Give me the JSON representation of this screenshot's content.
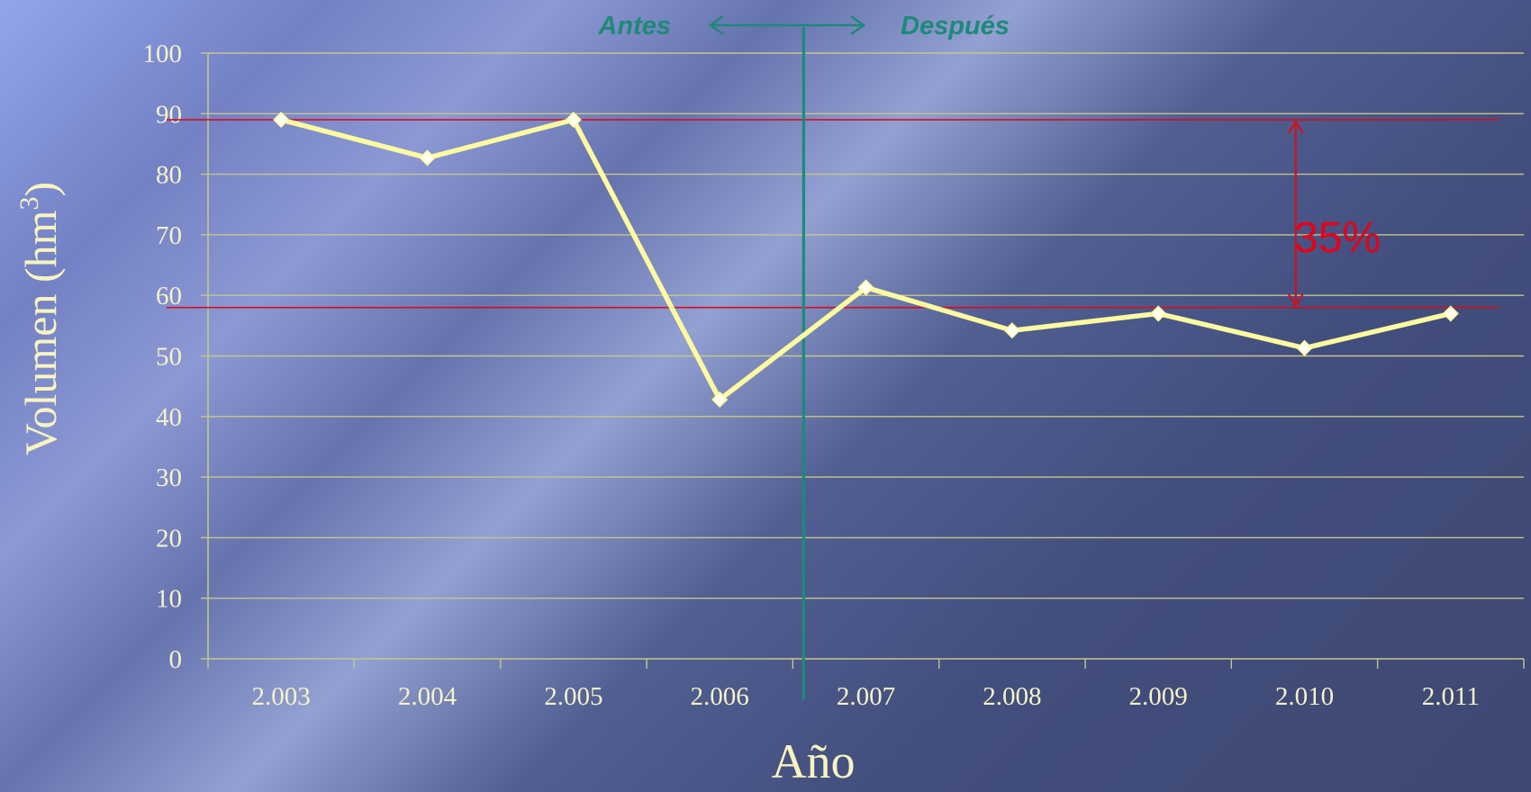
{
  "chart_data": {
    "type": "line",
    "categories": [
      "2.003",
      "2.004",
      "2.005",
      "2.006",
      "2.007",
      "2.008",
      "2.009",
      "2.010",
      "2.011"
    ],
    "series": [
      {
        "values": [
          89,
          82.7,
          89,
          42.8,
          61.3,
          54.2,
          57,
          51.3,
          57
        ]
      }
    ],
    "xlabel": "Año",
    "ylabel": "Volumen (hm",
    "ylabel_superscript": "3",
    "ylabel_suffix": ")",
    "ylim": [
      0,
      100
    ],
    "yticks": [
      0,
      10,
      20,
      30,
      40,
      50,
      60,
      70,
      80,
      90,
      100
    ],
    "grid": true,
    "annotations": {
      "before_label": "Antes",
      "after_label": "Después",
      "divider_between": [
        "2.006",
        "2.007"
      ],
      "reference_high": 89,
      "reference_low": 58,
      "reduction_label": "35%"
    },
    "colors": {
      "line": "#fdfba0",
      "marker": "#ffffee",
      "grid": "#c8c58c",
      "divider": "#1d8a78",
      "reference": "#d0101e",
      "text": "#f6f3c8"
    }
  }
}
